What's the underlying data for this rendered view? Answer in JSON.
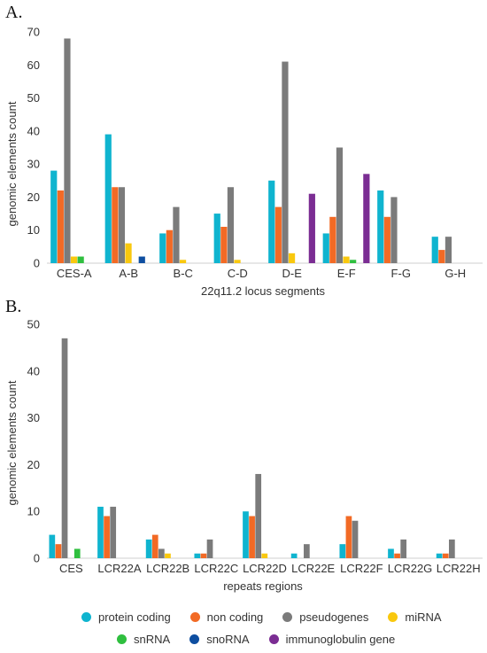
{
  "colors": {
    "protein_coding": "#0fb4cf",
    "non_coding": "#f26a25",
    "pseudogenes": "#7b7b7b",
    "miRNA": "#f9c80e",
    "snRNA": "#2fbf3f",
    "snoRNA": "#0e4ea0",
    "immunoglobulin_gene": "#7b2d93"
  },
  "legend": {
    "row1": [
      "protein coding",
      "non coding",
      "pseudogenes",
      "miRNA"
    ],
    "row2": [
      "snRNA",
      "snoRNA",
      "immunoglobulin gene"
    ]
  },
  "chart_data": [
    {
      "panel": "A.",
      "type": "bar",
      "xlabel": "22q11.2 locus segments",
      "ylabel": "genomic elements count",
      "ylim": [
        0,
        70
      ],
      "yticks": [
        0,
        10,
        20,
        30,
        40,
        50,
        60,
        70
      ],
      "categories": [
        "CES-A",
        "A-B",
        "B-C",
        "C-D",
        "D-E",
        "E-F",
        "F-G",
        "G-H"
      ],
      "series": [
        {
          "name": "protein coding",
          "values": [
            28,
            39,
            9,
            15,
            25,
            9,
            22,
            8
          ]
        },
        {
          "name": "non coding",
          "values": [
            22,
            23,
            10,
            11,
            17,
            14,
            14,
            4
          ]
        },
        {
          "name": "pseudogenes",
          "values": [
            68,
            23,
            17,
            23,
            61,
            35,
            20,
            8
          ]
        },
        {
          "name": "miRNA",
          "values": [
            2,
            6,
            1,
            1,
            3,
            2,
            0,
            0
          ]
        },
        {
          "name": "snRNA",
          "values": [
            2,
            0,
            0,
            0,
            0,
            1,
            0,
            0
          ]
        },
        {
          "name": "snoRNA",
          "values": [
            0,
            2,
            0,
            0,
            0,
            0,
            0,
            0
          ]
        },
        {
          "name": "immunoglobulin gene",
          "values": [
            0,
            0,
            0,
            0,
            21,
            27,
            0,
            0
          ]
        }
      ]
    },
    {
      "panel": "B.",
      "type": "bar",
      "xlabel": "repeats regions",
      "ylabel": "genomic elements count",
      "ylim": [
        0,
        50
      ],
      "yticks": [
        0,
        10,
        20,
        30,
        40,
        50
      ],
      "categories": [
        "CES",
        "LCR22A",
        "LCR22B",
        "LCR22C",
        "LCR22D",
        "LCR22E",
        "LCR22F",
        "LCR22G",
        "LCR22H"
      ],
      "series": [
        {
          "name": "protein coding",
          "values": [
            5,
            11,
            4,
            1,
            10,
            1,
            3,
            2,
            1
          ]
        },
        {
          "name": "non coding",
          "values": [
            3,
            9,
            5,
            1,
            9,
            0,
            9,
            1,
            1
          ]
        },
        {
          "name": "pseudogenes",
          "values": [
            47,
            11,
            2,
            4,
            18,
            3,
            8,
            4,
            4
          ]
        },
        {
          "name": "miRNA",
          "values": [
            0,
            0,
            1,
            0,
            1,
            0,
            0,
            0,
            0
          ]
        },
        {
          "name": "snRNA",
          "values": [
            2,
            0,
            0,
            0,
            0,
            0,
            0,
            0,
            0
          ]
        },
        {
          "name": "snoRNA",
          "values": [
            0,
            0,
            0,
            0,
            0,
            0,
            0,
            0,
            0
          ]
        },
        {
          "name": "immunoglobulin gene",
          "values": [
            0,
            0,
            0,
            0,
            0,
            0,
            0,
            0,
            0
          ]
        }
      ]
    }
  ]
}
